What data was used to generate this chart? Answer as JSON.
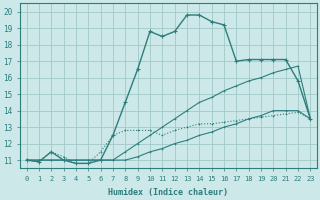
{
  "xlabel": "Humidex (Indice chaleur)",
  "xlim": [
    -0.5,
    23.5
  ],
  "ylim": [
    10.5,
    20.5
  ],
  "xticks": [
    0,
    1,
    2,
    3,
    4,
    5,
    6,
    7,
    8,
    9,
    10,
    11,
    12,
    13,
    14,
    15,
    16,
    17,
    18,
    19,
    20,
    21,
    22,
    23
  ],
  "yticks": [
    11,
    12,
    13,
    14,
    15,
    16,
    17,
    18,
    19,
    20
  ],
  "bg_color": "#cce8e8",
  "line_color": "#2d7d7d",
  "grid_color": "#a0c8c8",
  "line1_x": [
    0,
    1,
    2,
    3,
    4,
    5,
    6,
    7,
    8,
    9,
    10,
    11,
    12,
    13,
    14,
    15,
    16,
    17,
    18,
    19,
    20,
    21,
    22,
    23
  ],
  "line1_y": [
    11.0,
    11.0,
    11.0,
    11.0,
    11.0,
    11.0,
    11.0,
    11.0,
    11.0,
    11.2,
    11.5,
    11.7,
    12.0,
    12.2,
    12.5,
    12.7,
    13.0,
    13.2,
    13.5,
    13.7,
    14.0,
    14.0,
    14.0,
    13.5
  ],
  "line2_x": [
    0,
    1,
    2,
    3,
    4,
    5,
    6,
    7,
    8,
    9,
    10,
    11,
    12,
    13,
    14,
    15,
    16,
    17,
    18,
    19,
    20,
    21,
    22,
    23
  ],
  "line2_y": [
    11.0,
    11.0,
    11.0,
    11.0,
    11.0,
    11.0,
    11.0,
    11.0,
    11.5,
    12.0,
    12.5,
    13.0,
    13.5,
    14.0,
    14.5,
    14.8,
    15.2,
    15.5,
    15.8,
    16.0,
    16.3,
    16.5,
    16.7,
    13.5
  ],
  "line3_x": [
    0,
    1,
    2,
    3,
    4,
    5,
    6,
    7,
    8,
    9,
    10,
    11,
    12,
    13,
    14,
    15,
    16,
    17,
    18,
    19,
    20,
    21,
    22,
    23
  ],
  "line3_y": [
    11.0,
    10.9,
    11.5,
    11.0,
    10.8,
    10.8,
    11.0,
    12.5,
    14.5,
    16.5,
    18.8,
    18.5,
    18.8,
    19.8,
    19.8,
    19.4,
    19.2,
    17.0,
    17.1,
    17.1,
    17.1,
    17.1,
    15.8,
    13.5
  ],
  "line_bottom_x": [
    0,
    1,
    2,
    3,
    4,
    5,
    6,
    7,
    8,
    9,
    10,
    11,
    12,
    13,
    14,
    15,
    16,
    17,
    18,
    19,
    20,
    21,
    22,
    23
  ],
  "line_bottom_y": [
    11.0,
    10.9,
    11.5,
    11.2,
    10.8,
    10.8,
    11.5,
    12.5,
    12.8,
    12.8,
    12.8,
    12.5,
    12.8,
    13.0,
    13.2,
    13.2,
    13.3,
    13.4,
    13.5,
    13.6,
    13.7,
    13.8,
    13.9,
    13.5
  ]
}
